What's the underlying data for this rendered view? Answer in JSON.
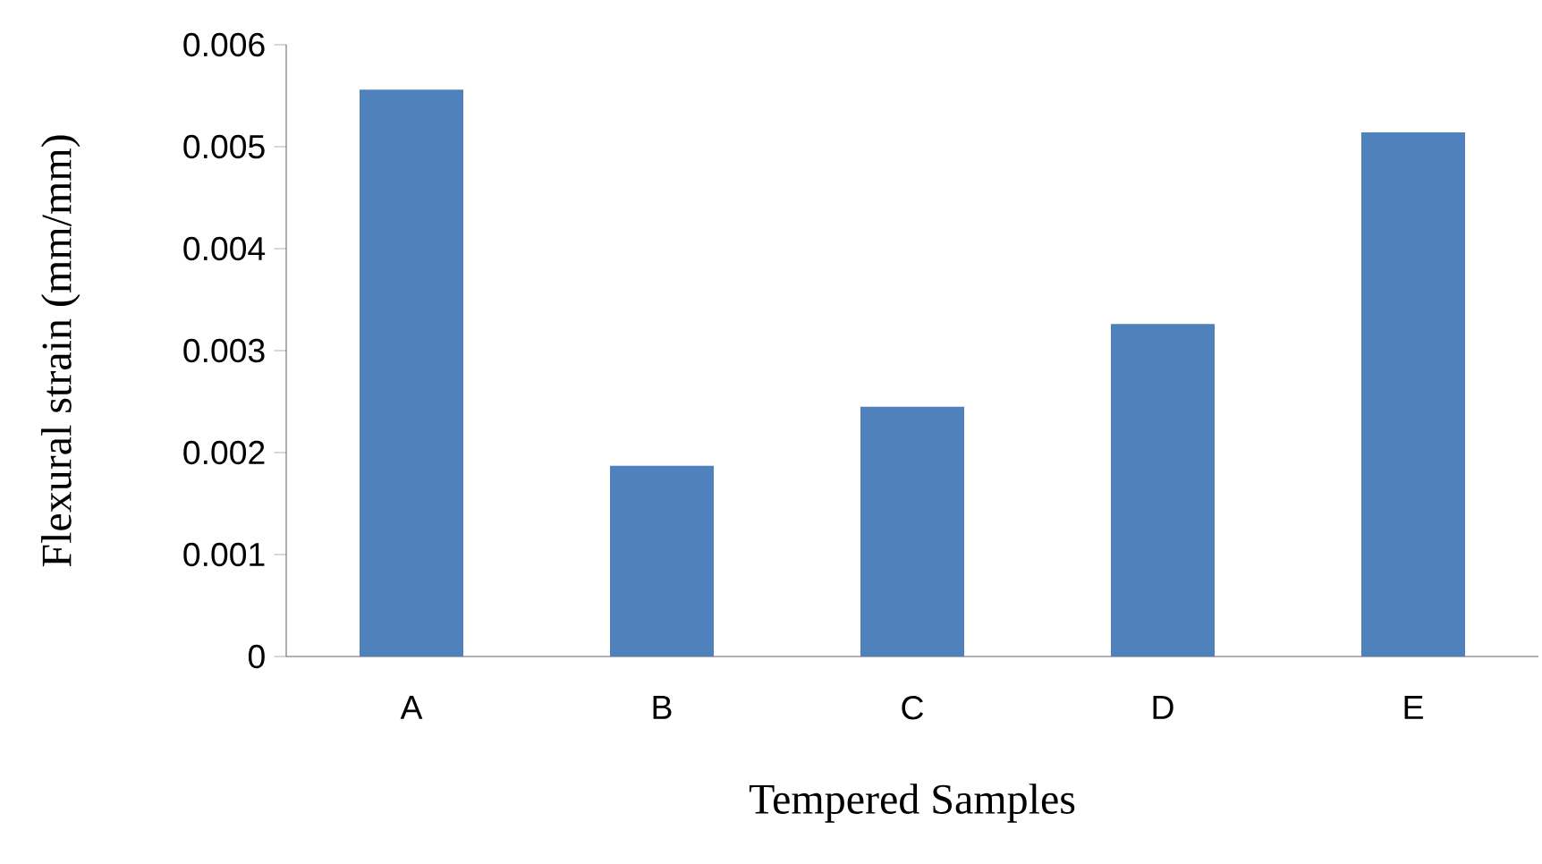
{
  "chart_data": {
    "type": "bar",
    "xlabel": "Tempered Samples",
    "ylabel": "Flexural strain  (mm/mm)",
    "categories": [
      "A",
      "B",
      "C",
      "D",
      "E"
    ],
    "values": [
      0.00556,
      0.00187,
      0.00245,
      0.00326,
      0.00514
    ],
    "color": "#4f81bd",
    "ylim": [
      0,
      0.006
    ],
    "yticks": [
      0,
      0.001,
      0.002,
      0.003,
      0.004,
      0.005,
      0.006
    ]
  }
}
